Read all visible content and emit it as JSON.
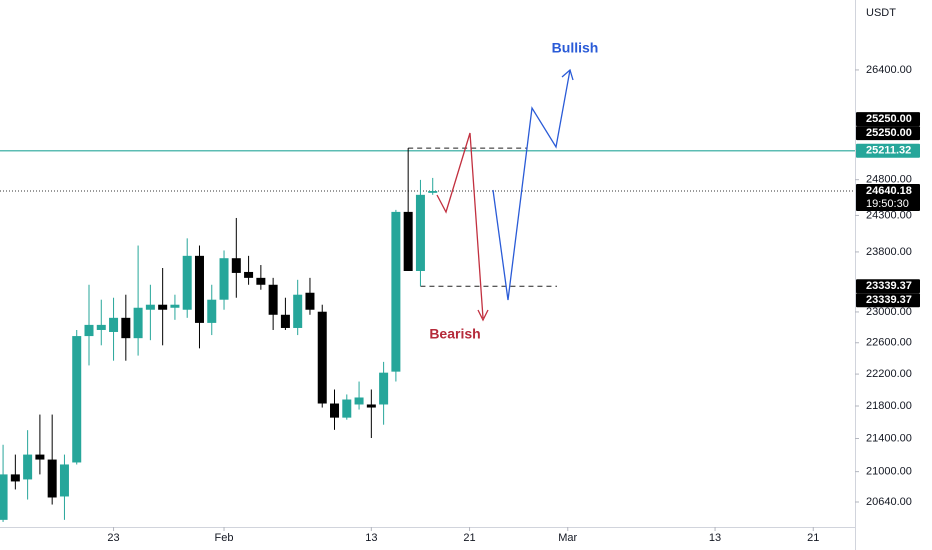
{
  "chart_data": {
    "type": "candlestick",
    "currency": "USDT",
    "log_scale": true,
    "ylim": [
      20348,
      27473
    ],
    "xlim": [
      -0.25,
      69.4
    ],
    "up_color": "#26a69a",
    "down_color": "#000000",
    "open": [
      20431,
      20967,
      20907,
      21205,
      21145,
      20705,
      21110,
      22686,
      22765,
      22739,
      22923,
      22659,
      23029,
      23095,
      23055,
      23029,
      23747,
      22857,
      23161,
      23715,
      23530,
      23451,
      23359,
      22963,
      22791,
      23253,
      23003,
      21831,
      21656,
      21819,
      21819,
      21819,
      22231,
      24349,
      23543,
      24615
    ],
    "high": [
      21324,
      21205,
      21502,
      21694,
      21694,
      21205,
      22765,
      23359,
      23161,
      23187,
      23227,
      23887,
      23359,
      23583,
      23227,
      23985,
      23887,
      23359,
      23820,
      24265,
      23747,
      23623,
      23451,
      23187,
      23425,
      23451,
      23095,
      22006,
      21944,
      22106,
      22006,
      22355,
      24377,
      25250,
      24797,
      24825
    ],
    "low": [
      20407,
      20788,
      20669,
      20967,
      20610,
      20431,
      21086,
      22310,
      22567,
      22370,
      22370,
      22435,
      22633,
      22567,
      22897,
      22923,
      22528,
      22699,
      23029,
      23187,
      23359,
      23293,
      22765,
      22765,
      22699,
      22963,
      21781,
      21506,
      21631,
      21756,
      21406,
      21569,
      22106,
      23543,
      23339.37,
      24587
    ],
    "close": [
      20967,
      20883,
      21205,
      21145,
      20693,
      21086,
      22686,
      22831,
      22831,
      22923,
      22659,
      23055,
      23095,
      23029,
      23095,
      23747,
      22857,
      23161,
      23715,
      23517,
      23451,
      23359,
      22963,
      22791,
      23227,
      23029,
      21831,
      21656,
      21881,
      21906,
      21781,
      22218,
      24349,
      23543,
      24587,
      24640.18
    ],
    "yticks": [
      {
        "value": 26400,
        "label": "26400.00"
      },
      {
        "value": 24800,
        "label": "24800.00"
      },
      {
        "value": 24300,
        "label": "24300.00"
      },
      {
        "value": 23800,
        "label": "23800.00"
      },
      {
        "value": 23000,
        "label": "23000.00"
      },
      {
        "value": 22600,
        "label": "22600.00"
      },
      {
        "value": 22200,
        "label": "22200.00"
      },
      {
        "value": 21800,
        "label": "21800.00"
      },
      {
        "value": 21400,
        "label": "21400.00"
      },
      {
        "value": 21000,
        "label": "21000.00"
      },
      {
        "value": 20640,
        "label": "20640.00"
      }
    ],
    "xticks": [
      {
        "value": 9,
        "label": "23"
      },
      {
        "value": 18,
        "label": "Feb"
      },
      {
        "value": 30,
        "label": "13"
      },
      {
        "value": 38,
        "label": "21"
      },
      {
        "value": 46,
        "label": "Mar"
      },
      {
        "value": 58,
        "label": "13"
      },
      {
        "value": 66,
        "label": "21"
      }
    ],
    "price_labels": [
      {
        "value": 25250,
        "label": "25250.00",
        "color": "#000000"
      },
      {
        "value": 25250,
        "label": "25250.00",
        "color": "#000000"
      },
      {
        "value": 25211.32,
        "label": "25211.32",
        "color": "#26a69a"
      },
      {
        "value": 24640.18,
        "label": "24640.18",
        "color": "#000000"
      },
      {
        "value": 23339.37,
        "label": "23339.37",
        "color": "#000000"
      },
      {
        "value": 23339.37,
        "label": "23339.37",
        "color": "#000000"
      }
    ],
    "countdown": "19:50:30",
    "annotations": [
      "Bullish",
      "Bearish"
    ]
  }
}
